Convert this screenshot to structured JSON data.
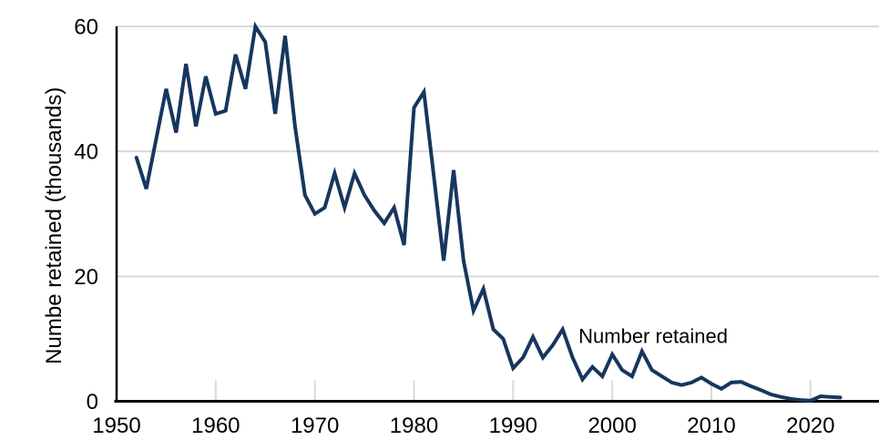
{
  "colors": {
    "line": "#17365d",
    "grid": "#d9d9d9",
    "axis": "#000000",
    "text": "#000000",
    "background": "#ffffff"
  },
  "chart_data": {
    "type": "line",
    "title": "",
    "xlabel": "",
    "ylabel": "Numbe retained (thousands)",
    "xlim": [
      1950,
      2030.4
    ],
    "ylim": [
      0,
      60
    ],
    "xticks": [
      1950,
      1960,
      1970,
      1980,
      1990,
      2000,
      2010,
      2020
    ],
    "yticks": [
      0,
      20,
      40,
      60
    ],
    "grid": "horizontal-only",
    "legend": "none",
    "annotation": {
      "label": "Number retained",
      "year": 1996.6,
      "value": 9.3
    },
    "series": [
      {
        "name": "Number retained",
        "color": "#17365d",
        "x": [
          1952,
          1953,
          1954,
          1955,
          1956,
          1957,
          1958,
          1959,
          1960,
          1961,
          1962,
          1963,
          1964,
          1965,
          1966,
          1967,
          1968,
          1969,
          1970,
          1971,
          1972,
          1973,
          1974,
          1975,
          1976,
          1977,
          1978,
          1979,
          1980,
          1981,
          1982,
          1983,
          1984,
          1985,
          1986,
          1987,
          1988,
          1989,
          1990,
          1991,
          1992,
          1993,
          1994,
          1995,
          1996,
          1997,
          1998,
          1999,
          2000,
          2001,
          2002,
          2003,
          2004,
          2005,
          2006,
          2007,
          2008,
          2009,
          2010,
          2011,
          2012,
          2013,
          2014,
          2015,
          2016,
          2017,
          2018,
          2019,
          2020,
          2021,
          2022,
          2023
        ],
        "values": [
          39,
          34,
          42,
          50,
          43,
          54,
          44,
          52,
          46,
          46.5,
          55.5,
          50,
          60,
          57.5,
          46,
          58.5,
          44,
          33,
          30,
          31,
          36.5,
          31,
          36.5,
          33,
          30.5,
          28.5,
          31,
          25,
          47,
          49.5,
          36,
          22.5,
          37,
          22.5,
          14.5,
          18,
          11.5,
          10,
          5.3,
          7,
          10.3,
          7,
          9,
          11.5,
          7,
          3.5,
          5.5,
          4,
          7.5,
          5,
          4,
          8,
          5,
          4,
          3,
          2.6,
          3,
          3.8,
          2.8,
          2,
          3,
          3.1,
          2.4,
          1.8,
          1.1,
          0.7,
          0.4,
          0.2,
          0.1,
          0.8,
          0.7,
          0.6
        ]
      }
    ]
  }
}
